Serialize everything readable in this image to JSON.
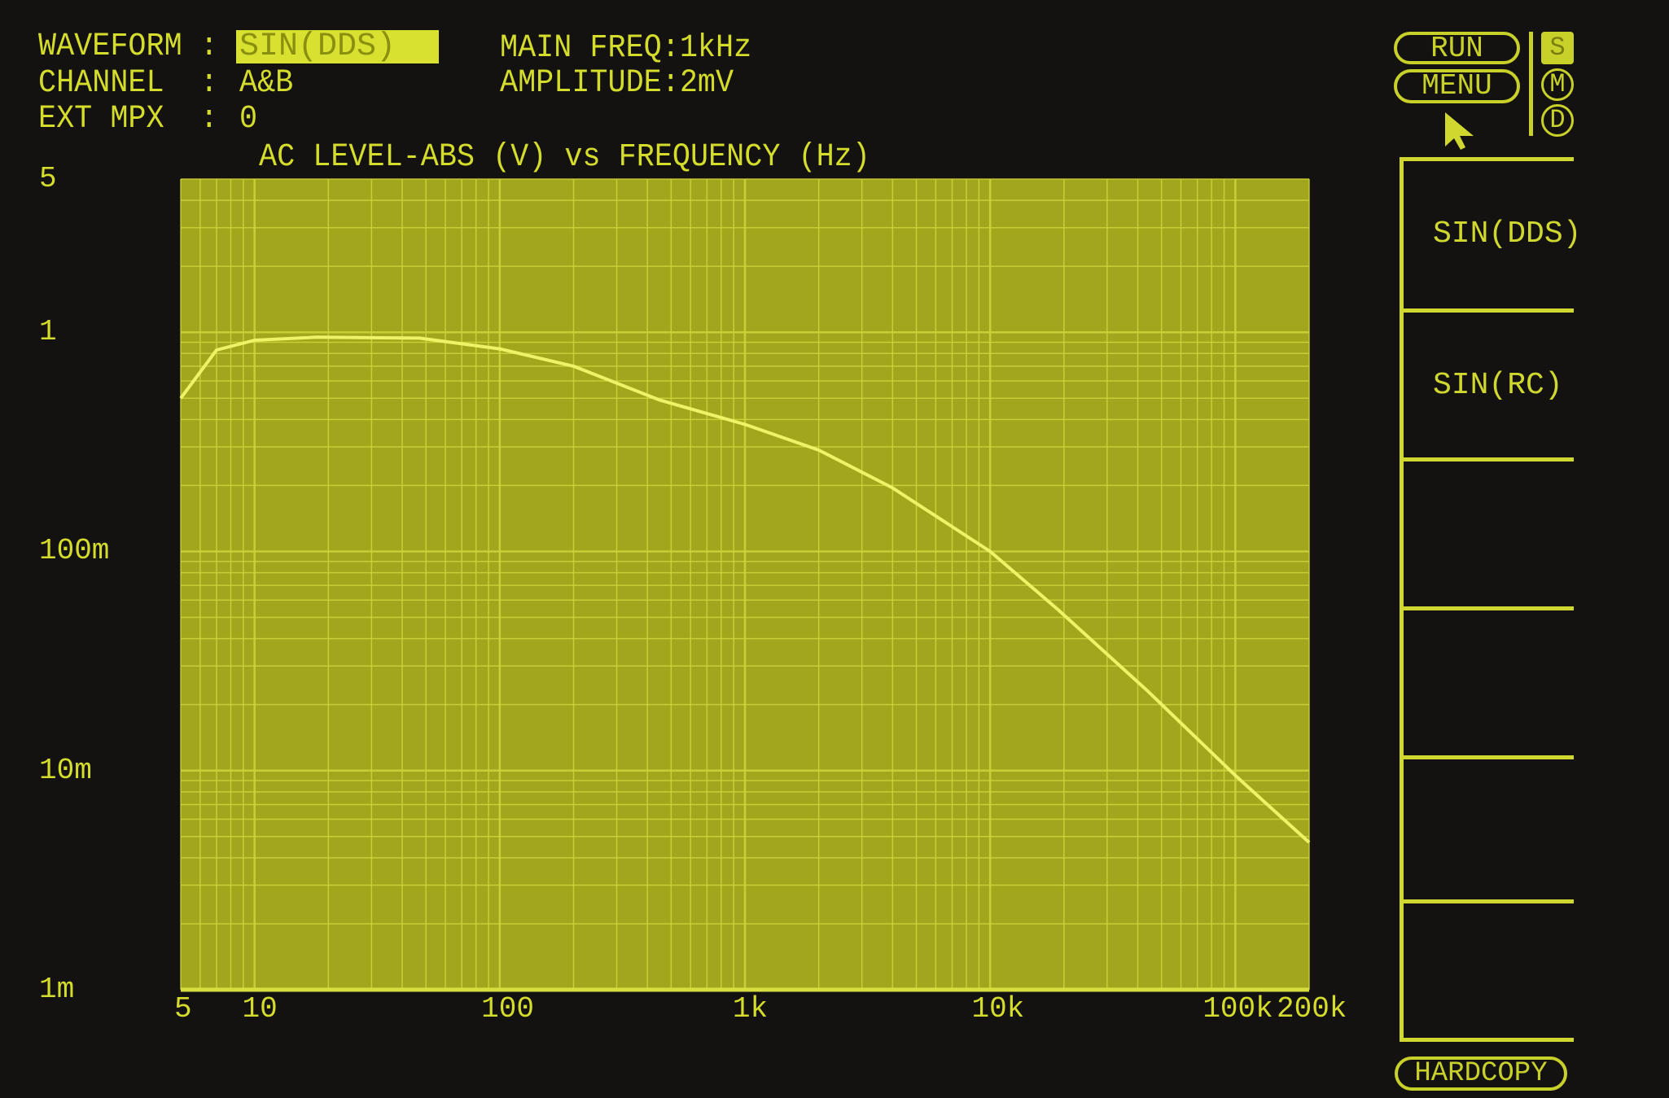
{
  "header": {
    "waveform_label": "WAVEFORM :",
    "waveform_value": "SIN(DDS)",
    "channel_label": "CHANNEL  :",
    "channel_value": "A&B",
    "ext_mpx_label": "EXT MPX  :",
    "ext_mpx_value": "0",
    "main_freq": "MAIN FREQ:1kHz",
    "amplitude": "AMPLITUDE:2mV"
  },
  "controls": {
    "run": "RUN",
    "menu": "MENU",
    "mode_s": "S",
    "mode_m": "M",
    "mode_d": "D",
    "active_mode": "S",
    "hardcopy": "HARDCOPY"
  },
  "softkeys": [
    "SIN(DDS)",
    "SIN(RC)",
    "",
    "",
    "",
    ""
  ],
  "colors": {
    "background": "#141210",
    "plot_bg": "#a2a61c",
    "grid": "#cfd53e",
    "trace": "#eef266",
    "text": "#d4dc2c"
  },
  "chart_data": {
    "type": "line",
    "title": "AC LEVEL-ABS (V) vs FREQUENCY (Hz)",
    "x_scale": "log",
    "y_scale": "log",
    "xlim": [
      5,
      200000
    ],
    "ylim": [
      0.001,
      5
    ],
    "grid": true,
    "x_ticks": [
      {
        "value": 5,
        "label": "5"
      },
      {
        "value": 10,
        "label": "10"
      },
      {
        "value": 100,
        "label": "100"
      },
      {
        "value": 1000,
        "label": "1k"
      },
      {
        "value": 10000,
        "label": "10k"
      },
      {
        "value": 100000,
        "label": "100k"
      },
      {
        "value": 200000,
        "label": "200k"
      }
    ],
    "y_ticks": [
      {
        "value": 5,
        "label": "5"
      },
      {
        "value": 1,
        "label": "1"
      },
      {
        "value": 0.1,
        "label": "100m"
      },
      {
        "value": 0.01,
        "label": "10m"
      },
      {
        "value": 0.001,
        "label": "1m"
      }
    ],
    "x": [
      5,
      7,
      10,
      18,
      47,
      100,
      200,
      450,
      1000,
      2000,
      4000,
      10000,
      19000,
      44000,
      100000,
      200000
    ],
    "y": [
      0.5,
      0.83,
      0.92,
      0.95,
      0.94,
      0.84,
      0.7,
      0.49,
      0.38,
      0.29,
      0.195,
      0.1,
      0.054,
      0.023,
      0.0095,
      0.0047
    ]
  }
}
